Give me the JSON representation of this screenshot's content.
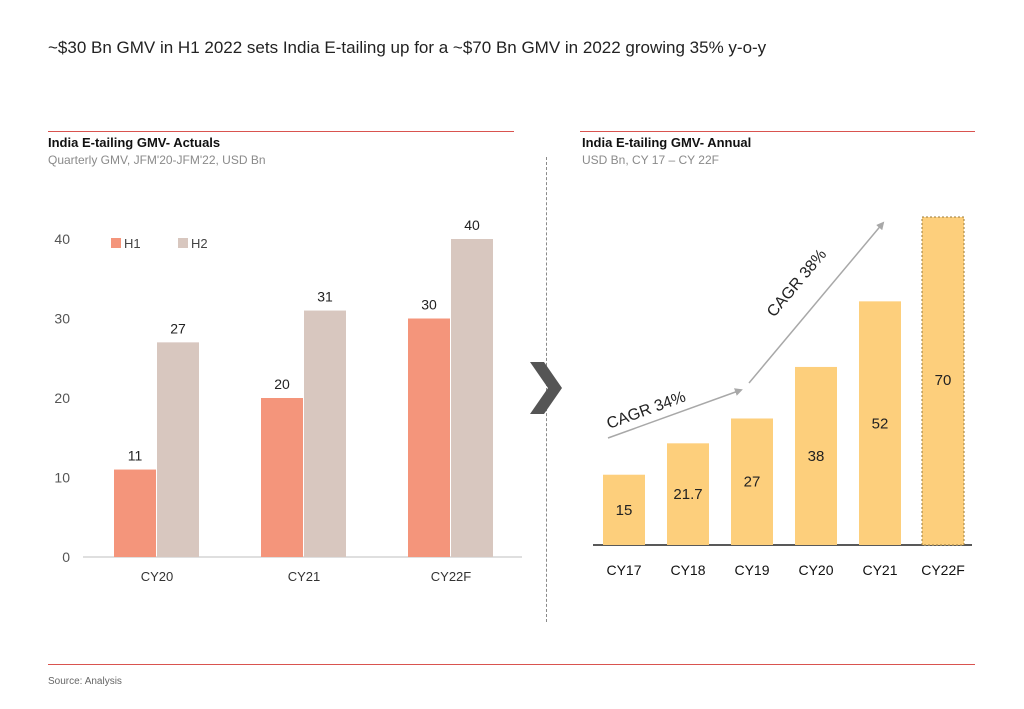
{
  "headline": "~$30 Bn GMV in H1 2022 sets India E-tailing up for a ~$70 Bn GMV in 2022 growing 35% y-o-y",
  "source": "Source: Analysis",
  "colors": {
    "accent_rule": "#d9534f",
    "h1": "#f4957b",
    "h2": "#d8c7bf",
    "annual": "#fdcf7c",
    "annual_border": "#e0b25a",
    "arrow": "#a8a8a8",
    "chevron": "#555555"
  },
  "chart_data": [
    {
      "type": "bar",
      "title": "India E-tailing GMV- Actuals",
      "subtitle": "Quarterly GMV, JFM'20-JFM'22, USD Bn",
      "categories": [
        "CY20",
        "CY21",
        "CY22F"
      ],
      "series": [
        {
          "name": "H1",
          "values": [
            11,
            20,
            30
          ]
        },
        {
          "name": "H2",
          "values": [
            27,
            31,
            40
          ]
        }
      ],
      "ylim": [
        0,
        40
      ],
      "yticks": [
        "0",
        "10",
        "20",
        "30",
        "40"
      ],
      "legend": "top-left",
      "grid": false
    },
    {
      "type": "bar",
      "title": "India E-tailing GMV- Annual",
      "subtitle": "USD Bn, CY 17 – CY 22F",
      "categories": [
        "CY17",
        "CY18",
        "CY19",
        "CY20",
        "CY21",
        "CY22F"
      ],
      "values": [
        15,
        21.7,
        27,
        38,
        52,
        70
      ],
      "value_labels": [
        "15",
        "21.7",
        "27",
        "38",
        "52",
        "70"
      ],
      "forecast_index": 5,
      "annotations": [
        "CAGR 34%",
        "CAGR 38%"
      ],
      "grid": false
    }
  ]
}
